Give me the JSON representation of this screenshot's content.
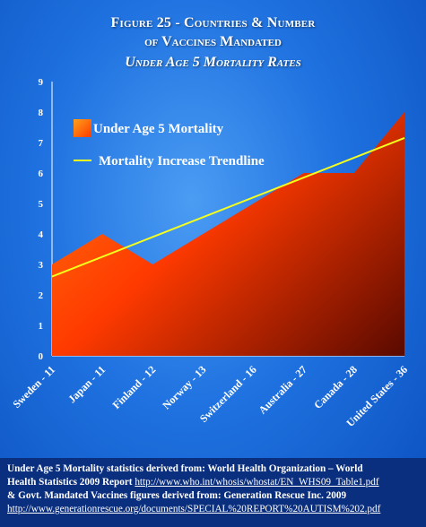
{
  "title": {
    "line1": "Figure 25 - Countries & Number",
    "line2": "of Vaccines Mandated",
    "line3": "Under Age 5 Mortality Rates"
  },
  "chart_data": {
    "type": "area",
    "categories": [
      "Sweden - 11",
      "Japan - 11",
      "Finland - 12",
      "Norway - 13",
      "Switzerland - 16",
      "Australia - 27",
      "Canada - 28",
      "United States - 36"
    ],
    "series": [
      {
        "name": "Under Age 5 Mortality",
        "type": "area",
        "values": [
          3,
          4,
          3,
          4,
          5,
          6,
          6,
          8
        ]
      },
      {
        "name": "Mortality Increase Trendline",
        "type": "line",
        "values": [
          2.6,
          3.25,
          3.9,
          4.55,
          5.2,
          5.85,
          6.5,
          7.15
        ]
      }
    ],
    "ylim": [
      0,
      9
    ],
    "yticks": [
      "0",
      "1",
      "2",
      "3",
      "4",
      "5",
      "6",
      "7",
      "8",
      "9"
    ],
    "grid": false,
    "legend_position": "top-left",
    "colors": {
      "area_top": "#ffa21a",
      "area_mid": "#ff3a00",
      "area_dark": "#3a0000",
      "trendline": "#f4ff1e",
      "text": "#ffffff"
    }
  },
  "footer": {
    "line1": "Under Age 5 Mortality statistics derived from: World Health Organization – World",
    "line2_text": "Health Statistics 2009 Report ",
    "line2_link": "http://www.who.int/whosis/whostat/EN_WHS09_Table1.pdf",
    "line3": "& Govt. Mandated Vaccines figures derived from: Generation Rescue Inc. 2009",
    "line4_link": "http://www.generationrescue.org/documents/SPECIAL%20REPORT%20AUTISM%202.pdf"
  }
}
